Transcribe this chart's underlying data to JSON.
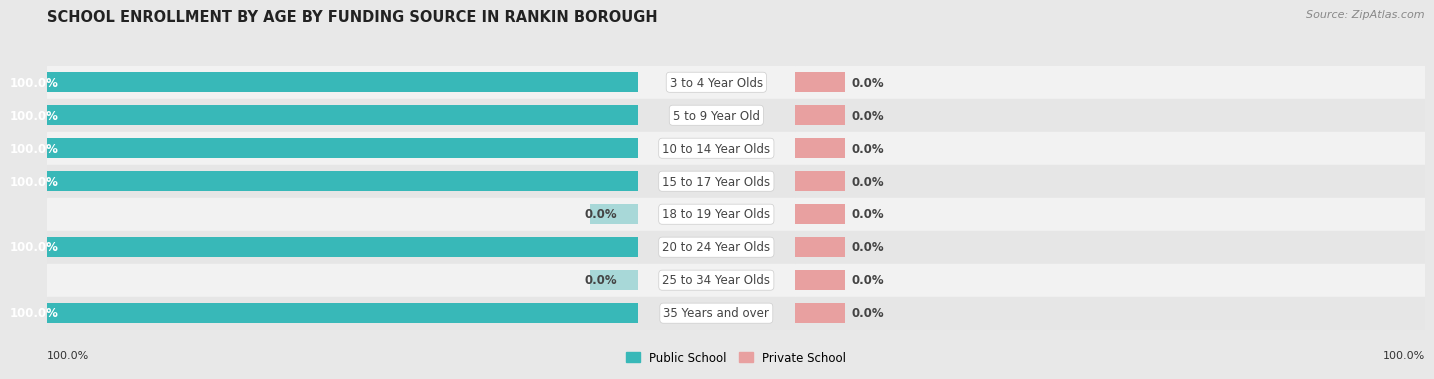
{
  "title": "SCHOOL ENROLLMENT BY AGE BY FUNDING SOURCE IN RANKIN BOROUGH",
  "source": "Source: ZipAtlas.com",
  "categories": [
    "3 to 4 Year Olds",
    "5 to 9 Year Old",
    "10 to 14 Year Olds",
    "15 to 17 Year Olds",
    "18 to 19 Year Olds",
    "20 to 24 Year Olds",
    "25 to 34 Year Olds",
    "35 Years and over"
  ],
  "public_values": [
    100.0,
    100.0,
    100.0,
    100.0,
    0.0,
    100.0,
    0.0,
    100.0
  ],
  "private_values": [
    0.0,
    0.0,
    0.0,
    0.0,
    0.0,
    0.0,
    0.0,
    0.0
  ],
  "public_color": "#38b8b8",
  "public_color_light": "#a8d8d8",
  "private_color": "#e8a0a0",
  "label_white": "#ffffff",
  "label_dark": "#444444",
  "bg_color": "#e8e8e8",
  "row_color_odd": "#f2f2f2",
  "row_color_even": "#e6e6e6",
  "bar_height": 0.62,
  "legend_public": "Public School",
  "legend_private": "Private School",
  "title_fontsize": 10.5,
  "source_fontsize": 8,
  "bar_label_fontsize": 8.5,
  "cat_label_fontsize": 8.5,
  "tick_fontsize": 8,
  "bottom_left_label": "100.0%",
  "bottom_right_label": "100.0%"
}
